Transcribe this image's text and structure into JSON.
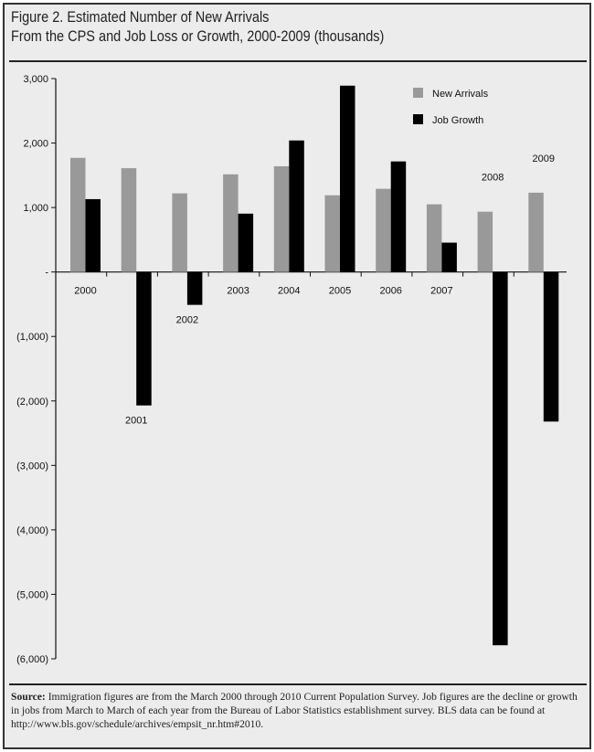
{
  "title_line1": "Figure 2. Estimated Number of New Arrivals",
  "title_line2": "From the CPS and Job Loss or Growth, 2000-2009 (thousands)",
  "source_label": "Source:",
  "source_text": " Immigration figures are from the March 2000 through 2010 Current Population Survey.  Job figures are the decline or growth in jobs from March to March of each year from the Bureau of Labor Statistics establishment survey.  BLS data can be found at http://www.bls.gov/schedule/archives/empsit_nr.htm#2010.",
  "colors": {
    "new_arrivals": "#999999",
    "job_growth": "#000000",
    "background": "#ececec"
  },
  "chart_data": {
    "type": "bar",
    "title": "Figure 2. Estimated Number of New Arrivals From the CPS and Job Loss or Growth, 2000-2009 (thousands)",
    "categories": [
      "2000",
      "2001",
      "2002",
      "2003",
      "2004",
      "2005",
      "2006",
      "2007",
      "2008",
      "2009"
    ],
    "series": [
      {
        "name": "New Arrivals",
        "values": [
          1770,
          1610,
          1220,
          1515,
          1640,
          1190,
          1290,
          1050,
          935,
          1230
        ]
      },
      {
        "name": "Job Growth",
        "values": [
          1130,
          -2070,
          -510,
          905,
          2040,
          2890,
          1715,
          455,
          -5790,
          -2320
        ]
      }
    ],
    "ylim": [
      -6000,
      3000
    ],
    "yticks": [
      3000,
      2000,
      1000,
      0,
      -1000,
      -2000,
      -3000,
      -4000,
      -5000,
      -6000
    ],
    "ytick_labels": [
      "3,000",
      "2,000",
      "1,000",
      "-",
      "(1,000)",
      "(2,000)",
      "(3,000)",
      "(4,000)",
      "(5,000)",
      "(6,000)"
    ],
    "xlabel": "",
    "ylabel": "",
    "legend_position": "top-right",
    "grid": false
  }
}
